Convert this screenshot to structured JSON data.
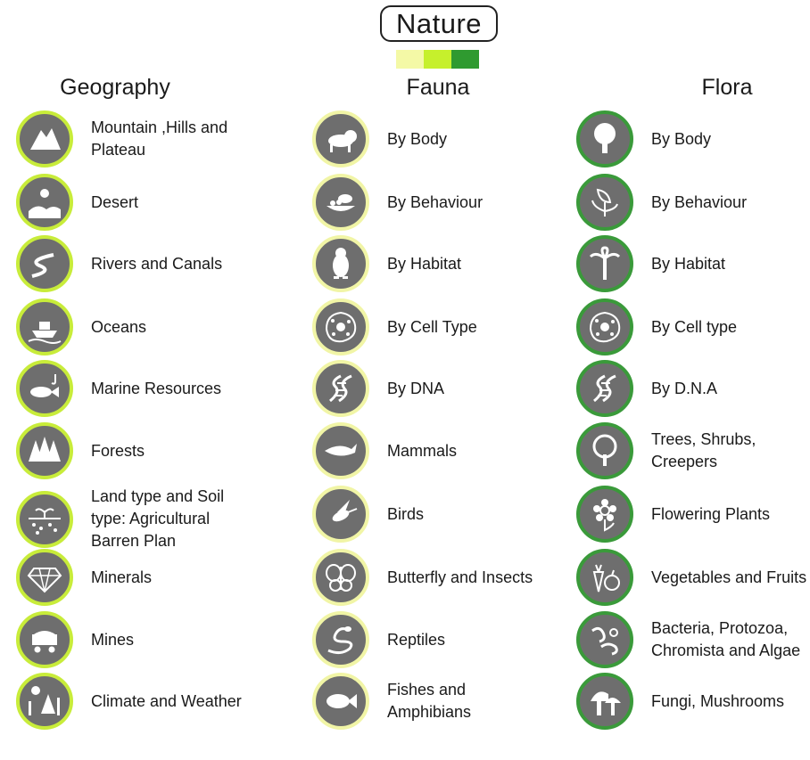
{
  "title": "Nature",
  "legend_colors": [
    "#f4f9a6",
    "#c6f02c",
    "#2f9a30"
  ],
  "columns": [
    {
      "heading": "Geography",
      "items": [
        {
          "label": "Mountain ,Hills and Plateau",
          "icon": "mountain-icon"
        },
        {
          "label": "Desert",
          "icon": "desert-icon"
        },
        {
          "label": "Rivers and Canals",
          "icon": "river-icon"
        },
        {
          "label": "Oceans",
          "icon": "ship-icon"
        },
        {
          "label": "Marine Resources",
          "icon": "fish-hook-icon"
        },
        {
          "label": "Forests",
          "icon": "forest-icon"
        },
        {
          "label": "Land type and Soil type: Agricultural Barren Plan",
          "icon": "soil-sprout-icon"
        },
        {
          "label": "Minerals",
          "icon": "diamond-icon"
        },
        {
          "label": "Mines",
          "icon": "mine-cart-icon"
        },
        {
          "label": "Climate and Weather",
          "icon": "climate-icon"
        }
      ]
    },
    {
      "heading": "Fauna",
      "items": [
        {
          "label": "By Body",
          "icon": "lion-icon"
        },
        {
          "label": "By Behaviour",
          "icon": "bird-nest-icon"
        },
        {
          "label": "By Habitat",
          "icon": "penguin-icon"
        },
        {
          "label": "By Cell Type",
          "icon": "cell-icon"
        },
        {
          "label": "By DNA",
          "icon": "dna-icon"
        },
        {
          "label": "Mammals",
          "icon": "whale-icon"
        },
        {
          "label": "Birds",
          "icon": "hummingbird-icon"
        },
        {
          "label": "Butterfly and Insects",
          "icon": "butterfly-icon"
        },
        {
          "label": "Reptiles",
          "icon": "snake-icon"
        },
        {
          "label": "Fishes and Amphibians",
          "icon": "fish-icon"
        }
      ]
    },
    {
      "heading": "Flora",
      "items": [
        {
          "label": "By Body",
          "icon": "tree-icon"
        },
        {
          "label": "By Behaviour",
          "icon": "flytrap-icon"
        },
        {
          "label": "By Habitat",
          "icon": "palm-icon"
        },
        {
          "label": "By Cell type",
          "icon": "cell-icon"
        },
        {
          "label": "By D.N.A",
          "icon": "dna-icon"
        },
        {
          "label": "Trees, Shrubs, Creepers",
          "icon": "round-tree-icon"
        },
        {
          "label": "Flowering Plants",
          "icon": "flower-icon"
        },
        {
          "label": "Vegetables and Fruits",
          "icon": "carrot-apple-icon"
        },
        {
          "label": "Bacteria, Protozoa, Chromista and Algae",
          "icon": "bacteria-icon"
        },
        {
          "label": "Fungi, Mushrooms",
          "icon": "mushroom-icon"
        }
      ]
    }
  ]
}
